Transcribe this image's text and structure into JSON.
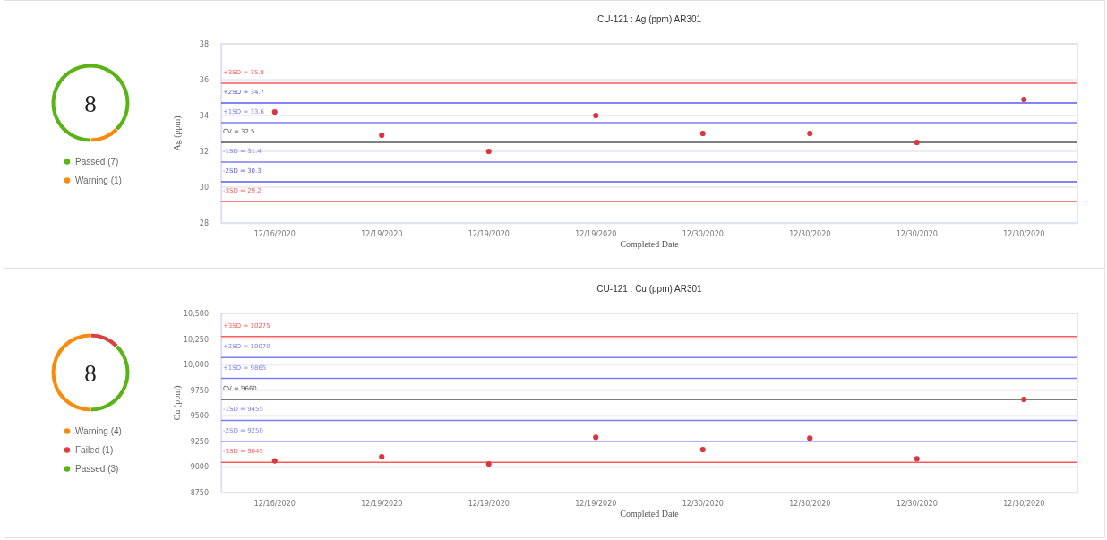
{
  "chart_data": [
    {
      "type": "donut",
      "categories": [
        "Passed (7)",
        "Warning (1)"
      ],
      "values": [
        7,
        1
      ],
      "colors": [
        "#5bb318",
        "#f98b0b"
      ],
      "legend": "bottom",
      "annotations": [
        "8"
      ]
    },
    {
      "type": "scatter",
      "title": "CU-121 : Ag (ppm) AR301",
      "xlabel": "Completed Date",
      "ylabel": "Ag (ppm)",
      "categories": [
        "12/16/2020",
        "12/19/2020",
        "12/19/2020",
        "12/19/2020",
        "12/30/2020",
        "12/30/2020",
        "12/30/2020",
        "12/30/2020"
      ],
      "series": [
        {
          "color": "#d9363e",
          "values": [
            34.2,
            32.9,
            32.0,
            34.0,
            33.0,
            33.0,
            32.5,
            34.9
          ]
        }
      ],
      "ylim": [
        28,
        38
      ],
      "yticks": [
        28,
        30,
        32,
        34,
        36,
        38
      ],
      "grid": "y",
      "marker": "circle",
      "ref_lines": [
        {
          "axis": "y",
          "value": 35.8,
          "label": "+3SD = 35.8",
          "color": "#ff5a5a"
        },
        {
          "axis": "y",
          "value": 34.7,
          "label": "+2SD = 34.7",
          "color": "#5b5bf0"
        },
        {
          "axis": "y",
          "value": 33.6,
          "label": "+1SD = 33.6",
          "color": "#7d7dfa"
        },
        {
          "axis": "y",
          "value": 32.5,
          "label": "CV = 32.5",
          "color": "#555555"
        },
        {
          "axis": "y",
          "value": 31.4,
          "label": "-1SD = 31.4",
          "color": "#7d7dfa"
        },
        {
          "axis": "y",
          "value": 30.3,
          "label": "-2SD = 30.3",
          "color": "#5b5bf0"
        },
        {
          "axis": "y",
          "value": 29.2,
          "label": "-3SD = 29.2",
          "color": "#ff5a5a"
        }
      ]
    },
    {
      "type": "donut",
      "categories": [
        "Warning (4)",
        "Failed (1)",
        "Passed (3)"
      ],
      "values": [
        4,
        1,
        3
      ],
      "colors": [
        "#f98b0b",
        "#dc4040",
        "#5bb318"
      ],
      "legend": "bottom",
      "annotations": [
        "8"
      ]
    },
    {
      "type": "scatter",
      "title": "CU-121 : Cu (ppm) AR301",
      "xlabel": "Completed Date",
      "ylabel": "Cu (ppm)",
      "categories": [
        "12/16/2020",
        "12/19/2020",
        "12/19/2020",
        "12/19/2020",
        "12/30/2020",
        "12/30/2020",
        "12/30/2020",
        "12/30/2020"
      ],
      "series": [
        {
          "color": "#d9363e",
          "values": [
            9060,
            9100,
            9030,
            9290,
            9170,
            9280,
            9080,
            9660
          ]
        }
      ],
      "ylim": [
        8750,
        10500
      ],
      "yticks": [
        {
          "value": 8750,
          "label": "8750"
        },
        {
          "value": 9000,
          "label": "9000"
        },
        {
          "value": 9250,
          "label": "9250"
        },
        {
          "value": 9500,
          "label": "9500"
        },
        {
          "value": 9750,
          "label": "9750"
        },
        {
          "value": 10000,
          "label": "10,000"
        },
        {
          "value": 10250,
          "label": "10,250"
        },
        {
          "value": 10500,
          "label": "10,500"
        }
      ],
      "grid": "y",
      "marker": "circle",
      "ref_lines": [
        {
          "axis": "y",
          "value": 10275,
          "label": "+3SD = 10275",
          "color": "#ff5a5a"
        },
        {
          "axis": "y",
          "value": 10070,
          "label": "+2SD = 10070",
          "color": "#7d7dfa"
        },
        {
          "axis": "y",
          "value": 9865,
          "label": "+1SD = 9865",
          "color": "#7d7dfa"
        },
        {
          "axis": "y",
          "value": 9660,
          "label": "CV = 9660",
          "color": "#555555"
        },
        {
          "axis": "y",
          "value": 9455,
          "label": "-1SD = 9455",
          "color": "#7d7dfa"
        },
        {
          "axis": "y",
          "value": 9250,
          "label": "-2SD = 9250",
          "color": "#7d7dfa"
        },
        {
          "axis": "y",
          "value": 9045,
          "label": "-3SD = 9045",
          "color": "#ff5a5a"
        }
      ]
    }
  ]
}
